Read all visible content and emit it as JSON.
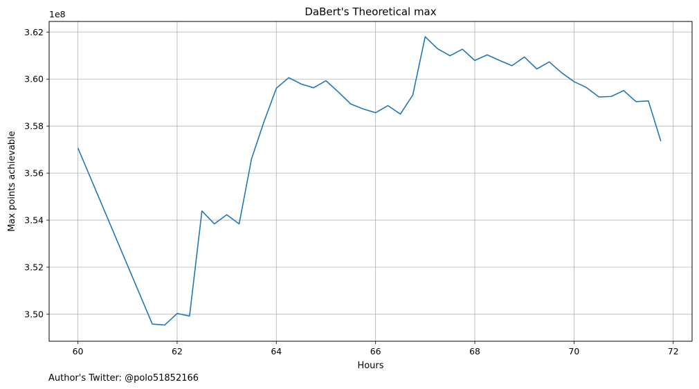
{
  "chart_data": {
    "type": "line",
    "title": "DaBert's Theoretical max",
    "xlabel": "Hours",
    "ylabel": "Max points achievable",
    "y_offset_label": "1e8",
    "xlim": [
      59.42,
      72.38
    ],
    "ylim": [
      3.4885,
      3.6245
    ],
    "xticks": [
      60,
      62,
      64,
      66,
      68,
      70,
      72
    ],
    "xtick_labels": [
      "60",
      "62",
      "64",
      "66",
      "68",
      "70",
      "72"
    ],
    "yticks": [
      3.5,
      3.52,
      3.54,
      3.56,
      3.58,
      3.6,
      3.62
    ],
    "ytick_labels": [
      "3.50",
      "3.52",
      "3.54",
      "3.56",
      "3.58",
      "3.60",
      "3.62"
    ],
    "grid": true,
    "line_color": "#1f77b4",
    "series": [
      {
        "x": [
          60.0,
          61.5,
          61.75,
          62.0,
          62.25,
          62.5,
          62.75,
          63.0,
          63.25,
          63.5,
          63.75,
          64.0,
          64.25,
          64.5,
          64.75,
          65.0,
          65.25,
          65.5,
          65.75,
          66.0,
          66.25,
          66.5,
          66.75,
          67.0,
          67.25,
          67.5,
          67.75,
          68.0,
          68.25,
          68.5,
          68.75,
          69.0,
          69.25,
          69.5,
          69.75,
          70.0,
          70.25,
          70.5,
          70.75,
          71.0,
          71.25,
          71.5,
          71.75
        ],
        "y": [
          3.5707,
          3.4958,
          3.4954,
          3.5003,
          3.4992,
          3.5439,
          3.5384,
          3.5423,
          3.5384,
          3.5661,
          3.5818,
          3.5961,
          3.6006,
          3.5979,
          3.5963,
          3.5993,
          3.5945,
          3.5894,
          3.5873,
          3.5857,
          3.5887,
          3.5851,
          3.5932,
          3.618,
          3.6129,
          3.6099,
          3.6127,
          3.6079,
          3.6103,
          3.6079,
          3.6057,
          3.6094,
          3.6043,
          3.6073,
          3.6027,
          3.5989,
          3.5964,
          3.5924,
          3.5926,
          3.5951,
          3.5904,
          3.5907,
          3.5736
        ]
      }
    ]
  },
  "footer": {
    "text": "Author's Twitter: @polo51852166"
  }
}
